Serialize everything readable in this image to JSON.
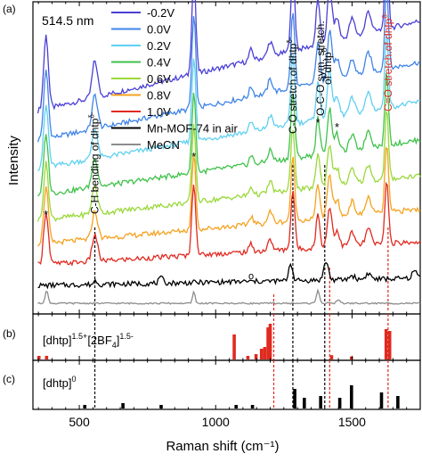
{
  "figure": {
    "xlabel": "Raman shift (cm⁻¹)",
    "ylabel": "Intensity",
    "wavelength": "514.5 nm",
    "panel_labels": [
      "(a)",
      "(b)",
      "(c)"
    ]
  },
  "chart_data": [
    {
      "panel": "(a)",
      "type": "line",
      "xlim": [
        330,
        1750
      ],
      "xticks": [
        500,
        1000,
        1500
      ],
      "xtick_labels": [
        "500",
        "1000",
        "1500"
      ],
      "ylabel": "Intensity",
      "annotation_text": "514.5 nm",
      "series": [
        {
          "name": "-0.2V",
          "color": "#4a3fd6",
          "offset": 13.6,
          "slope": 6.2,
          "scale": 1.25
        },
        {
          "name": "0.0V",
          "color": "#3f84e8",
          "offset": 11.6,
          "slope": 5.4,
          "scale": 1.15
        },
        {
          "name": "0.2V",
          "color": "#5fd0f0",
          "offset": 9.7,
          "slope": 4.6,
          "scale": 1.05
        },
        {
          "name": "0.4V",
          "color": "#3fc24a",
          "offset": 7.9,
          "slope": 3.8,
          "scale": 1.0
        },
        {
          "name": "0.6V",
          "color": "#9ad83a",
          "offset": 6.2,
          "slope": 3.1,
          "scale": 0.95
        },
        {
          "name": "0.8V",
          "color": "#f5a21f",
          "offset": 4.6,
          "slope": 2.4,
          "scale": 0.95
        },
        {
          "name": "1.0V",
          "color": "#e02a20",
          "offset": 3.2,
          "slope": 1.6,
          "scale": 0.9
        },
        {
          "name": "Mn-MOF-74 in air",
          "color": "#000000",
          "offset": 1.8,
          "slope": 0.5,
          "scale": 0.55
        },
        {
          "name": "MeCN",
          "color": "#8c8c8c",
          "offset": 0.6,
          "slope": 0.0,
          "scale": 0.7
        }
      ],
      "peaks": [
        {
          "x": 378,
          "label": "*"
        },
        {
          "x": 557
        },
        {
          "x": 920,
          "label": "*"
        },
        {
          "x": 1283
        },
        {
          "x": 1375,
          "label": "*"
        },
        {
          "x": 1418
        },
        {
          "x": 1445,
          "label": "*"
        },
        {
          "x": 1627
        }
      ],
      "annotations": [
        {
          "text": "C-H bending of dhtp",
          "superscript": "δ-",
          "x": 557,
          "color": "#000000"
        },
        {
          "text": "C-O stretch.of dhtp",
          "superscript": "δ-",
          "x": 1283,
          "color": "#000000"
        },
        {
          "text": "O-C-O sym. stretch.",
          "x": 1385,
          "color": "#000000"
        },
        {
          "text": "of dhtp",
          "superscript": "δ-",
          "x": 1410,
          "color": "#000000"
        },
        {
          "text": "C=O stretch.of dhtp",
          "superscript": "δ-",
          "x": 1632,
          "color": "#e02a20"
        },
        {
          "text": "o",
          "x": 1130,
          "color": "#000000"
        }
      ],
      "dashed_lines": [
        {
          "x": 557,
          "color": "#000000"
        },
        {
          "x": 1283,
          "color": "#000000"
        },
        {
          "x": 1400,
          "color": "#000000"
        },
        {
          "x": 1213,
          "color": "#e02a20"
        },
        {
          "x": 1418,
          "color": "#e02a20"
        },
        {
          "x": 1632,
          "color": "#e02a20"
        }
      ]
    },
    {
      "panel": "(b)",
      "type": "bar",
      "label": "[dhtp]",
      "label_sup1": "1.5+",
      "label_mid": "[2BF",
      "label_sub": "4",
      "label_end": "]",
      "label_sup2": "1.5-",
      "color": "#e02a20",
      "x": [
        352,
        380,
        1068,
        1118,
        1148,
        1168,
        1180,
        1192,
        1200,
        1425,
        1498,
        1625,
        1638
      ],
      "values": [
        0.1,
        0.1,
        0.7,
        0.1,
        0.15,
        0.3,
        0.35,
        0.9,
        1.0,
        0.12,
        0.08,
        0.85,
        0.8
      ]
    },
    {
      "panel": "(c)",
      "type": "bar",
      "label": "[dhtp]",
      "label_sup": "0",
      "color": "#000000",
      "x": [
        520,
        660,
        800,
        1075,
        1135,
        1290,
        1325,
        1385,
        1455,
        1498,
        1608,
        1668
      ],
      "values": [
        0.1,
        0.15,
        0.1,
        0.1,
        0.1,
        0.55,
        0.3,
        0.35,
        0.3,
        0.65,
        0.45,
        0.35
      ]
    }
  ]
}
